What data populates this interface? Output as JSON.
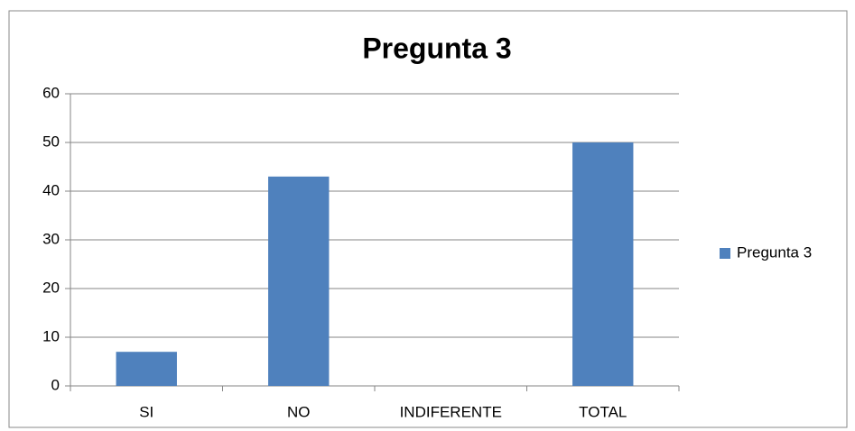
{
  "chart_data": {
    "type": "bar",
    "title": "Pregunta 3",
    "categories": [
      "SI",
      "NO",
      "INDIFERENTE",
      "TOTAL"
    ],
    "series": [
      {
        "name": "Pregunta 3",
        "color": "#4f81bd",
        "values": [
          7,
          43,
          0,
          50
        ]
      }
    ],
    "ylim": [
      0,
      60
    ],
    "yticks": [
      0,
      10,
      20,
      30,
      40,
      50,
      60
    ],
    "grid": true,
    "legend": "right"
  }
}
